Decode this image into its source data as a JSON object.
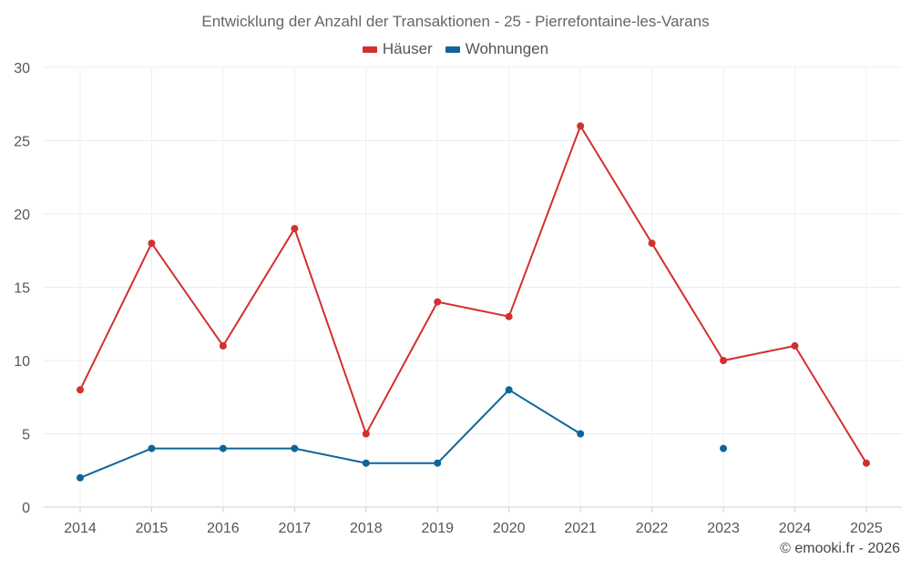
{
  "chart_data": {
    "type": "line",
    "title": "Entwicklung der Anzahl der Transaktionen - 25 - Pierrefontaine-les-Varans",
    "xlabel": "",
    "ylabel": "",
    "categories": [
      "2014",
      "2015",
      "2016",
      "2017",
      "2018",
      "2019",
      "2020",
      "2021",
      "2022",
      "2023",
      "2024",
      "2025"
    ],
    "ylim": [
      0,
      30
    ],
    "yticks": [
      0,
      5,
      10,
      15,
      20,
      25,
      30
    ],
    "grid": true,
    "legend_position": "top-center",
    "series": [
      {
        "name": "Häuser",
        "color": "#d32f2f",
        "values": [
          8,
          18,
          11,
          19,
          5,
          14,
          13,
          26,
          18,
          10,
          11,
          3
        ]
      },
      {
        "name": "Wohnungen",
        "color": "#0d6599",
        "values": [
          2,
          4,
          4,
          4,
          3,
          3,
          8,
          5,
          null,
          4,
          null,
          null
        ]
      }
    ]
  },
  "credit": "© emooki.fr - 2026"
}
